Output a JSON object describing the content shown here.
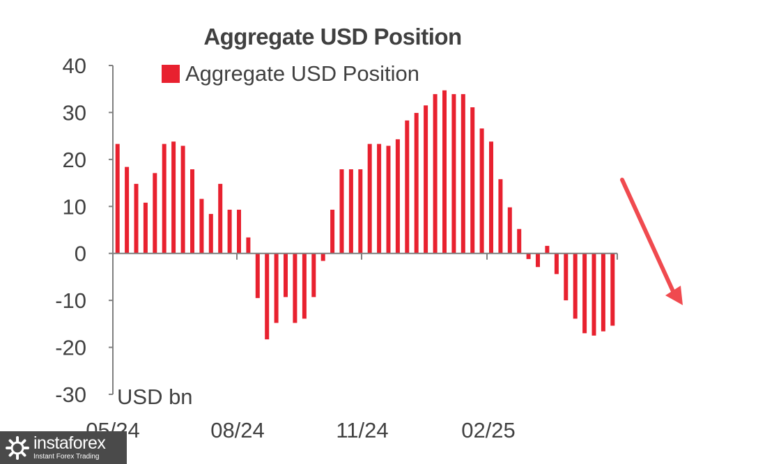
{
  "chart_data": {
    "type": "bar",
    "title": "Aggregate USD Position",
    "ylabel": "USD bn",
    "ylim": [
      -30,
      40
    ],
    "yticks": [
      40,
      30,
      20,
      10,
      0,
      -10,
      -20,
      -30
    ],
    "xticks": [
      "05/24",
      "08/24",
      "11/24",
      "02/25"
    ],
    "grid": false,
    "legend_position": "top",
    "series": [
      {
        "name": "Aggregate USD Position",
        "color": "#e8212f",
        "values": [
          23.3,
          18.4,
          14.8,
          10.8,
          17.1,
          23.3,
          23.8,
          22.9,
          17.9,
          11.6,
          8.4,
          14.8,
          9.3,
          9.3,
          3.4,
          -9.5,
          -18.3,
          -14.8,
          -9.3,
          -14.8,
          -13.9,
          -9.3,
          -1.6,
          9.3,
          17.9,
          17.9,
          17.9,
          23.3,
          23.3,
          22.9,
          24.3,
          28.3,
          29.9,
          31.5,
          33.9,
          34.7,
          33.9,
          33.9,
          31.1,
          26.6,
          23.8,
          15.8,
          9.8,
          5.2,
          -1.2,
          -2.9,
          1.6,
          -4.4,
          -10.0,
          -13.9,
          -17.0,
          -17.5,
          -16.6,
          -15.4
        ]
      }
    ]
  },
  "watermark": {
    "name": "instaforex",
    "tagline": "Instant Forex Trading"
  },
  "annotation": {
    "arrow_icon": "down-trend-arrow-icon",
    "arrow_color": "#f04a4f"
  }
}
